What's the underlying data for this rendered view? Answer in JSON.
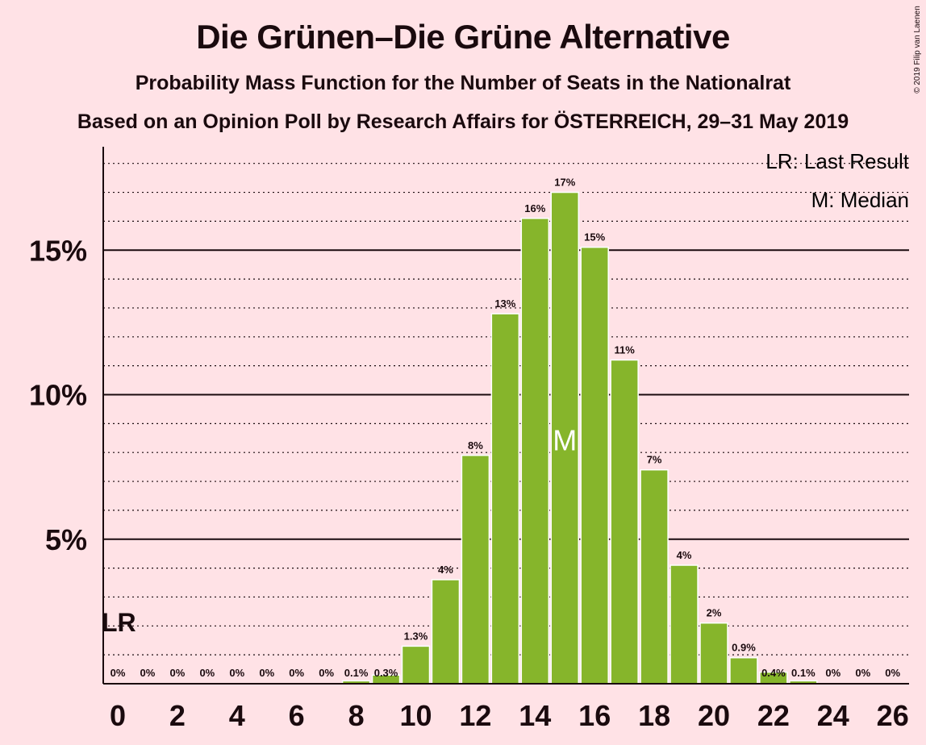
{
  "title": "Die Grünen–Die Grüne Alternative",
  "subtitle": "Probability Mass Function for the Number of Seats in the Nationalrat",
  "subtitle2": "Based on an Opinion Poll by Research Affairs for ÖSTERREICH, 29–31 May 2019",
  "copyright": "© 2019 Filip van Laenen",
  "legend": {
    "last_result": "LR: Last Result",
    "median": "M: Median"
  },
  "markers": {
    "last_result_label": "LR",
    "median_label": "M"
  },
  "colors": {
    "background": "#ffe2e6",
    "bar": "#86b52b",
    "text": "#1a0a0e"
  },
  "chart_data": {
    "type": "bar",
    "x": [
      0,
      1,
      2,
      3,
      4,
      5,
      6,
      7,
      8,
      9,
      10,
      11,
      12,
      13,
      14,
      15,
      16,
      17,
      18,
      19,
      20,
      21,
      22,
      23,
      24,
      25,
      26
    ],
    "values": [
      0,
      0,
      0,
      0,
      0,
      0,
      0,
      0,
      0.1,
      0.3,
      1.3,
      3.6,
      7.9,
      12.8,
      16.1,
      17.0,
      15.1,
      11.2,
      7.4,
      4.1,
      2.1,
      0.9,
      0.4,
      0.1,
      0,
      0,
      0
    ],
    "data_labels": [
      "0%",
      "0%",
      "0%",
      "0%",
      "0%",
      "0%",
      "0%",
      "0%",
      "0.1%",
      "0.3%",
      "1.3%",
      "4%",
      "8%",
      "13%",
      "16%",
      "17%",
      "15%",
      "11%",
      "7%",
      "4%",
      "2%",
      "0.9%",
      "0.4%",
      "0.1%",
      "0%",
      "0%",
      "0%"
    ],
    "x_tick_labels": [
      "0",
      "2",
      "4",
      "6",
      "8",
      "10",
      "12",
      "14",
      "16",
      "18",
      "20",
      "22",
      "24",
      "26"
    ],
    "x_ticks": [
      0,
      2,
      4,
      6,
      8,
      10,
      12,
      14,
      16,
      18,
      20,
      22,
      24,
      26
    ],
    "y_ticks": [
      5,
      10,
      15
    ],
    "y_tick_labels": [
      "5%",
      "10%",
      "15%"
    ],
    "y_minor_step": 1,
    "ylim": [
      0,
      18.5
    ],
    "last_result": 0,
    "median": 15,
    "grid": true,
    "legend_position": "top-right"
  }
}
